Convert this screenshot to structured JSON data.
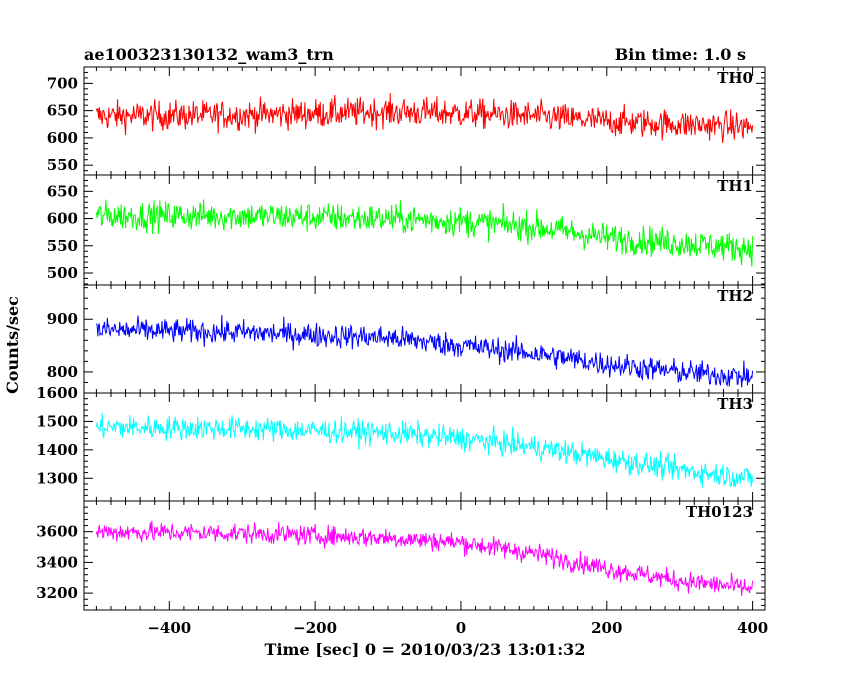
{
  "header": {
    "title": "ae100323130132_wam3_trn",
    "bin_time": "Bin time: 1.0 s"
  },
  "axes": {
    "xlabel": "Time [sec] 0 = 2010/03/23 13:01:32",
    "ylabel": "Counts/sec",
    "x_ticks": [
      "−400",
      "−200",
      "0",
      "200",
      "400"
    ]
  },
  "chart_data": {
    "type": "line",
    "title": "ae100323130132_wam3_trn",
    "subtitle": "Bin time: 1.0 s",
    "xlabel": "Time [sec] 0 = 2010/03/23 13:01:32",
    "ylabel": "Counts/sec",
    "xlim": [
      -500,
      400
    ],
    "x_ticks": [
      -400,
      -200,
      0,
      200,
      400
    ],
    "grid": false,
    "series": [
      {
        "name": "TH0",
        "color": "#ff0000",
        "ylim": [
          532,
          730
        ],
        "y_ticks": [
          550,
          600,
          650,
          700
        ],
        "y_tick_labels": [
          "550",
          "600",
          "650",
          "700"
        ],
        "trend": [
          [
            -500,
            640
          ],
          [
            -300,
            642
          ],
          [
            -100,
            648
          ],
          [
            0,
            645
          ],
          [
            100,
            640
          ],
          [
            200,
            630
          ],
          [
            300,
            625
          ],
          [
            400,
            620
          ]
        ],
        "noise": 35
      },
      {
        "name": "TH1",
        "color": "#00ff00",
        "ylim": [
          478,
          680
        ],
        "y_ticks": [
          500,
          550,
          600,
          650
        ],
        "y_tick_labels": [
          "500",
          "550",
          "600",
          "650"
        ],
        "trend": [
          [
            -500,
            605
          ],
          [
            -300,
            605
          ],
          [
            -100,
            600
          ],
          [
            0,
            595
          ],
          [
            100,
            585
          ],
          [
            200,
            565
          ],
          [
            300,
            555
          ],
          [
            400,
            545
          ]
        ],
        "noise": 35
      },
      {
        "name": "TH2",
        "color": "#0000ff",
        "ylim": [
          760,
          965
        ],
        "y_ticks": [
          800,
          900
        ],
        "y_tick_labels": [
          "800",
          "900"
        ],
        "trend": [
          [
            -500,
            880
          ],
          [
            -300,
            875
          ],
          [
            -100,
            865
          ],
          [
            0,
            850
          ],
          [
            100,
            835
          ],
          [
            200,
            815
          ],
          [
            300,
            800
          ],
          [
            400,
            790
          ]
        ],
        "noise": 30
      },
      {
        "name": "TH3",
        "color": "#00ffff",
        "ylim": [
          1220,
          1600
        ],
        "y_ticks": [
          1300,
          1400,
          1500,
          1600
        ],
        "y_tick_labels": [
          "1300",
          "1400",
          "1500",
          "1600"
        ],
        "trend": [
          [
            -500,
            1480
          ],
          [
            -300,
            1475
          ],
          [
            -100,
            1460
          ],
          [
            0,
            1440
          ],
          [
            100,
            1410
          ],
          [
            200,
            1370
          ],
          [
            300,
            1330
          ],
          [
            400,
            1300
          ]
        ],
        "noise": 55
      },
      {
        "name": "TH0123",
        "color": "#ff00ff",
        "ylim": [
          3090,
          3800
        ],
        "y_ticks": [
          3200,
          3400,
          3600
        ],
        "y_tick_labels": [
          "3200",
          "3400",
          "3600"
        ],
        "trend": [
          [
            -500,
            3600
          ],
          [
            -300,
            3590
          ],
          [
            -100,
            3560
          ],
          [
            0,
            3530
          ],
          [
            100,
            3460
          ],
          [
            200,
            3360
          ],
          [
            300,
            3280
          ],
          [
            400,
            3230
          ]
        ],
        "noise": 85
      }
    ]
  }
}
